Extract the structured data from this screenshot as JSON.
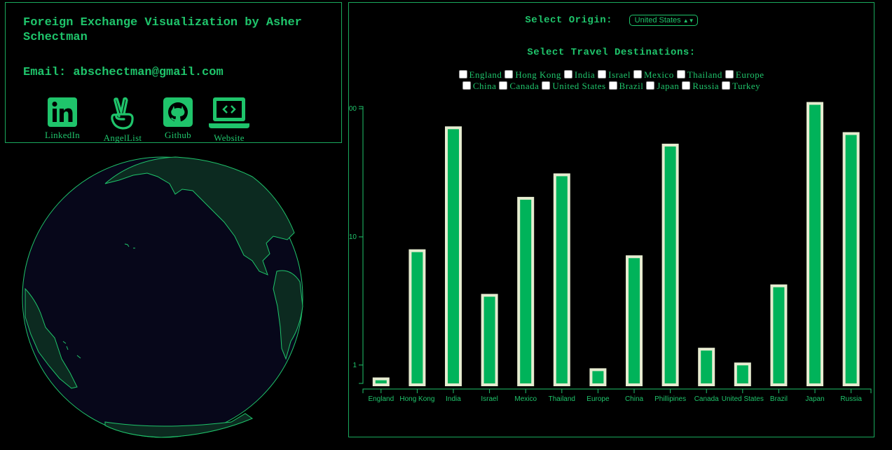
{
  "info": {
    "title": "Foreign Exchange Visualization by Asher Schectman",
    "email": "Email: abschectman@gmail.com",
    "links": [
      {
        "label": "LinkedIn",
        "icon": "linkedin-icon"
      },
      {
        "label": "AngelList",
        "icon": "angellist-icon"
      },
      {
        "label": "Github",
        "icon": "github-icon"
      },
      {
        "label": "Website",
        "icon": "website-icon"
      }
    ]
  },
  "controls": {
    "origin_label": "Select Origin:",
    "origin_value": "United States",
    "destinations_label": "Select Travel Destinations:",
    "row1": [
      "England",
      "Hong Kong",
      "India",
      "Israel",
      "Mexico",
      "Thailand",
      "Europe"
    ],
    "row2": [
      "China",
      "Canada",
      "United States",
      "Brazil",
      "Japan",
      "Russia",
      "Turkey"
    ]
  },
  "colors": {
    "accent": "#1fc46b",
    "bar_fill": "#00b35a",
    "bar_stroke": "#e6ecd0",
    "globe_ocean": "#07071a",
    "globe_land": "#0c2a20"
  },
  "chart_data": {
    "type": "bar",
    "scale": "log",
    "categories": [
      "England",
      "Hong Kong",
      "India",
      "Israel",
      "Mexico",
      "Thailand",
      "Europe",
      "China",
      "Phillipines",
      "Canada",
      "United States",
      "Brazil",
      "Japan",
      "Russia"
    ],
    "values": [
      0.78,
      7.8,
      71,
      3.5,
      20,
      30.5,
      0.92,
      7.0,
      52,
      1.33,
      1.02,
      4.15,
      110,
      64
    ],
    "y_ticks": [
      "1",
      "10",
      "100"
    ],
    "ylim": [
      0.65,
      115
    ]
  }
}
